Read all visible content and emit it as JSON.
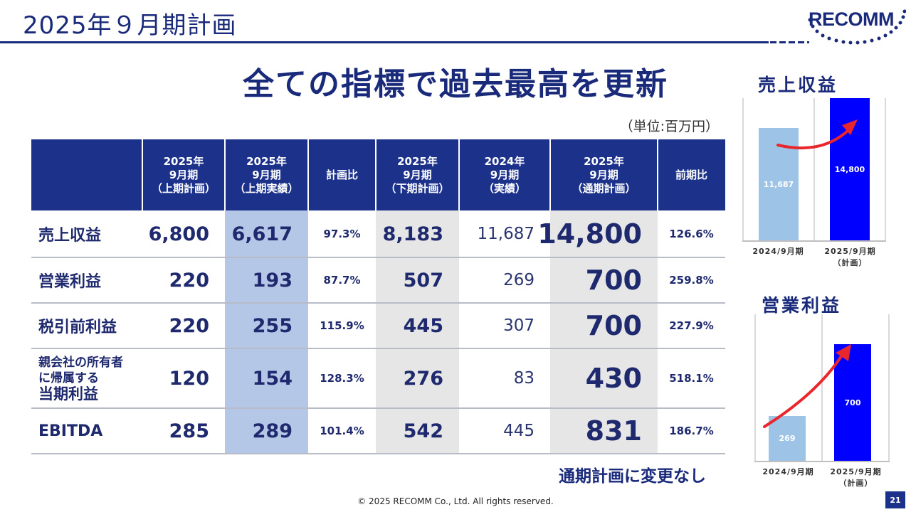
{
  "header": {
    "title": "2025年９月期計画",
    "logo_text": "RECOMM"
  },
  "headline": "全ての指標で過去最高を更新",
  "unit_note": "（単位:百万円）",
  "table": {
    "columns": [
      "",
      "2025年\n9月期\n（上期計画）",
      "2025年\n9月期\n（上期実績）",
      "計画比",
      "2025年\n9月期\n（下期計画）",
      "2024年\n9月期\n（実績）",
      "2025年\n9月期\n（通期計画）",
      "前期比"
    ],
    "rows": [
      {
        "label": [
          "売上収益"
        ],
        "values": [
          "6,800",
          "6,617",
          "97.3%",
          "8,183",
          "11,687",
          "14,800",
          "126.6%"
        ]
      },
      {
        "label": [
          "営業利益"
        ],
        "values": [
          "220",
          "193",
          "87.7%",
          "507",
          "269",
          "700",
          "259.8%"
        ]
      },
      {
        "label": [
          "税引前利益"
        ],
        "values": [
          "220",
          "255",
          "115.9%",
          "445",
          "307",
          "700",
          "227.9%"
        ]
      },
      {
        "label": [
          "親会社の所有者",
          "に帰属する",
          "当期利益"
        ],
        "values": [
          "120",
          "154",
          "128.3%",
          "276",
          "83",
          "430",
          "518.1%"
        ]
      },
      {
        "label": [
          "EBITDA"
        ],
        "values": [
          "285",
          "289",
          "101.4%",
          "542",
          "445",
          "831",
          "186.7%"
        ]
      }
    ]
  },
  "note": "通期計画に変更なし",
  "copyright": "© 2025 RECOMM Co., Ltd. All rights reserved.",
  "page_number": "21",
  "colors": {
    "navy": "#1b318a",
    "highlight_blue": "#b4c7e7",
    "highlight_gray": "#e6e6e6",
    "bar_light": "#9dc3e6",
    "bar_dark": "#0000ff",
    "arrow": "#e8262b"
  },
  "chart_data": [
    {
      "type": "bar",
      "title": "売上収益",
      "categories": [
        "2024/9月期",
        "2025/9月期\n（計画）"
      ],
      "values": [
        11687,
        14800
      ],
      "data_labels": [
        "11,687",
        "14,800"
      ],
      "ylim": [
        0,
        14800
      ],
      "grid": false,
      "legend": "none"
    },
    {
      "type": "bar",
      "title": "営業利益",
      "categories": [
        "2024/9月期",
        "2025/9月期\n（計画）"
      ],
      "values": [
        269,
        700
      ],
      "data_labels": [
        "269",
        "700"
      ],
      "ylim": [
        0,
        880
      ],
      "grid": false,
      "legend": "none"
    }
  ]
}
